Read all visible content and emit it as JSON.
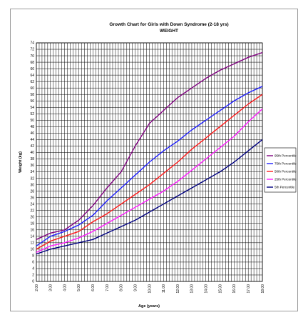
{
  "chart_data": {
    "type": "line",
    "title": "Growth Chart for Girls with Down Syndrome (2-18 yrs)",
    "subtitle": "WEIGHT",
    "xlabel": "Age (years)",
    "ylabel": "Weight (kg)",
    "x": [
      2,
      3,
      4,
      5,
      6,
      7,
      8,
      9,
      10,
      11,
      12,
      13,
      14,
      15,
      16,
      17,
      18
    ],
    "x_tick_labels": [
      "2.00",
      "3.00",
      "4.00",
      "5.00",
      "6.00",
      "7.00",
      "8.00",
      "9.00",
      "10.00",
      "11.00",
      "12.00",
      "13.00",
      "14.00",
      "15.00",
      "16.00",
      "17.00",
      "18.00"
    ],
    "xlim": [
      2,
      18
    ],
    "ylim": [
      0,
      74
    ],
    "y_tick_step": 2,
    "grid": true,
    "legend_position": "right",
    "series": [
      {
        "name": "95th Percentile",
        "color": "#800080",
        "values": [
          13,
          15,
          16,
          19,
          23.5,
          29,
          34,
          42,
          49,
          53,
          57,
          60,
          63,
          65.5,
          67.5,
          69.5,
          71
        ]
      },
      {
        "name": "75th Percentile",
        "color": "#1f1fff",
        "values": [
          11,
          14,
          15.5,
          17.5,
          20.5,
          25,
          29,
          33,
          37,
          40.5,
          43.5,
          47,
          50,
          53,
          56,
          58.5,
          60.5
        ]
      },
      {
        "name": "50th Percentile",
        "color": "#ff1a1a",
        "values": [
          10,
          12.5,
          14,
          15.5,
          18.5,
          21,
          24,
          27,
          30,
          33.5,
          37,
          41,
          44.5,
          48,
          51.5,
          55,
          58
        ]
      },
      {
        "name": "25th Percentile",
        "color": "#ff1aff",
        "values": [
          9,
          11,
          12,
          13.5,
          15.5,
          18,
          20.5,
          23,
          25.5,
          28,
          31,
          34.5,
          38,
          41.5,
          45,
          49.5,
          53.5
        ]
      },
      {
        "name": "5th Percentile",
        "color": "#000080",
        "values": [
          8.5,
          10,
          11,
          12,
          13,
          15,
          17,
          19,
          21.5,
          24,
          26.5,
          29,
          31.5,
          34,
          37,
          40.5,
          44
        ]
      }
    ]
  }
}
